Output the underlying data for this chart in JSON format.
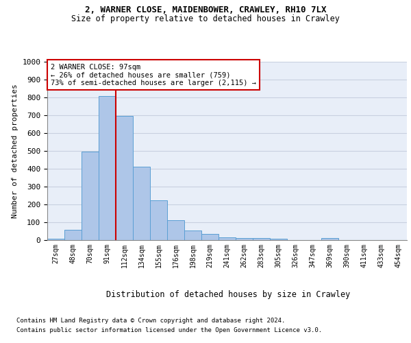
{
  "title_line1": "2, WARNER CLOSE, MAIDENBOWER, CRAWLEY, RH10 7LX",
  "title_line2": "Size of property relative to detached houses in Crawley",
  "xlabel": "Distribution of detached houses by size in Crawley",
  "ylabel": "Number of detached properties",
  "footnote1": "Contains HM Land Registry data © Crown copyright and database right 2024.",
  "footnote2": "Contains public sector information licensed under the Open Government Licence v3.0.",
  "bar_labels": [
    "27sqm",
    "48sqm",
    "70sqm",
    "91sqm",
    "112sqm",
    "134sqm",
    "155sqm",
    "176sqm",
    "198sqm",
    "219sqm",
    "241sqm",
    "262sqm",
    "283sqm",
    "305sqm",
    "326sqm",
    "347sqm",
    "369sqm",
    "390sqm",
    "411sqm",
    "433sqm",
    "454sqm"
  ],
  "bar_values": [
    8,
    57,
    495,
    807,
    695,
    413,
    224,
    113,
    52,
    33,
    15,
    13,
    11,
    8,
    0,
    0,
    10,
    0,
    0,
    0,
    0
  ],
  "bar_color": "#aec6e8",
  "bar_edge_color": "#5a9fd4",
  "property_line_x": 3.5,
  "property_value": "97sqm",
  "annotation_text": "2 WARNER CLOSE: 97sqm\n← 26% of detached houses are smaller (759)\n73% of semi-detached houses are larger (2,115) →",
  "annotation_box_color": "#ffffff",
  "annotation_box_edge_color": "#cc0000",
  "red_line_color": "#cc0000",
  "ylim": [
    0,
    1000
  ],
  "yticks": [
    0,
    100,
    200,
    300,
    400,
    500,
    600,
    700,
    800,
    900,
    1000
  ],
  "grid_color": "#c8d0e0",
  "background_color": "#e8eef8",
  "fig_background": "#ffffff",
  "title1_fontsize": 9,
  "title2_fontsize": 8.5,
  "ylabel_fontsize": 8,
  "ytick_fontsize": 8,
  "xtick_fontsize": 7,
  "annotation_fontsize": 7.5,
  "xlabel_fontsize": 8.5,
  "footnote_fontsize": 6.5
}
